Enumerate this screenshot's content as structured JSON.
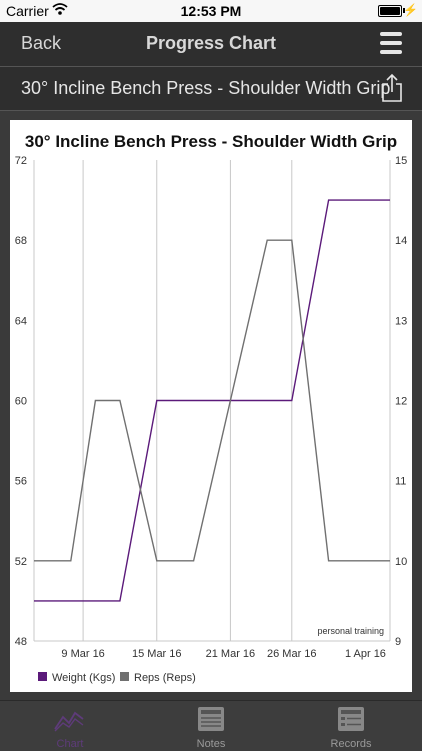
{
  "status_bar": {
    "carrier": "Carrier",
    "time": "12:53 PM"
  },
  "nav": {
    "back_label": "Back",
    "title": "Progress Chart",
    "menu_icon": "hamburger-menu-icon"
  },
  "exercise_bar": {
    "name": "30° Incline Bench Press - Shoulder Width Grip",
    "share_icon": "share-icon"
  },
  "tabs": [
    {
      "label": "Chart",
      "icon": "chart-icon",
      "active": true
    },
    {
      "label": "Notes",
      "icon": "notes-icon",
      "active": false
    },
    {
      "label": "Records",
      "icon": "records-icon",
      "active": false
    }
  ],
  "chart_data": {
    "type": "line",
    "title": "30° Incline Bench Press - Shoulder Width Grip",
    "watermark": "personal training",
    "x_tick_labels": [
      "9 Mar 16",
      "15 Mar 16",
      "21 Mar 16",
      "26 Mar 16",
      "1 Apr 16"
    ],
    "y_left": {
      "ticks": [
        "72",
        "68",
        "64",
        "60",
        "56",
        "52",
        "48"
      ],
      "lim": [
        48,
        72
      ]
    },
    "y_right": {
      "ticks": [
        "15",
        "14",
        "13",
        "12",
        "11",
        "10",
        "9"
      ],
      "lim": [
        9,
        15
      ]
    },
    "xlim": [
      "5 Mar 16",
      "3 Apr 16"
    ],
    "grid_dates": [
      "5 Mar 16",
      "9 Mar 16",
      "15 Mar 16",
      "21 Mar 16",
      "26 Mar 16",
      "3 Apr 16"
    ],
    "series": [
      {
        "name": "Weight (Kgs)",
        "axis": "left",
        "color": "#5b1a7a",
        "points": [
          [
            "5 Mar 16",
            50
          ],
          [
            "12 Mar 16",
            50
          ],
          [
            "15 Mar 16",
            60
          ],
          [
            "26 Mar 16",
            60
          ],
          [
            "29 Mar 16",
            70
          ],
          [
            "3 Apr 16",
            70
          ]
        ]
      },
      {
        "name": "Reps (Reps)",
        "axis": "right",
        "color": "#707070",
        "points": [
          [
            "5 Mar 16",
            10
          ],
          [
            "8 Mar 16",
            10
          ],
          [
            "10 Mar 16",
            12
          ],
          [
            "12 Mar 16",
            12
          ],
          [
            "15 Mar 16",
            10
          ],
          [
            "18 Mar 16",
            10
          ],
          [
            "24 Mar 16",
            14
          ],
          [
            "26 Mar 16",
            14
          ],
          [
            "29 Mar 16",
            10
          ],
          [
            "3 Apr 16",
            10
          ]
        ]
      }
    ],
    "legend_position": "bottom-left"
  }
}
